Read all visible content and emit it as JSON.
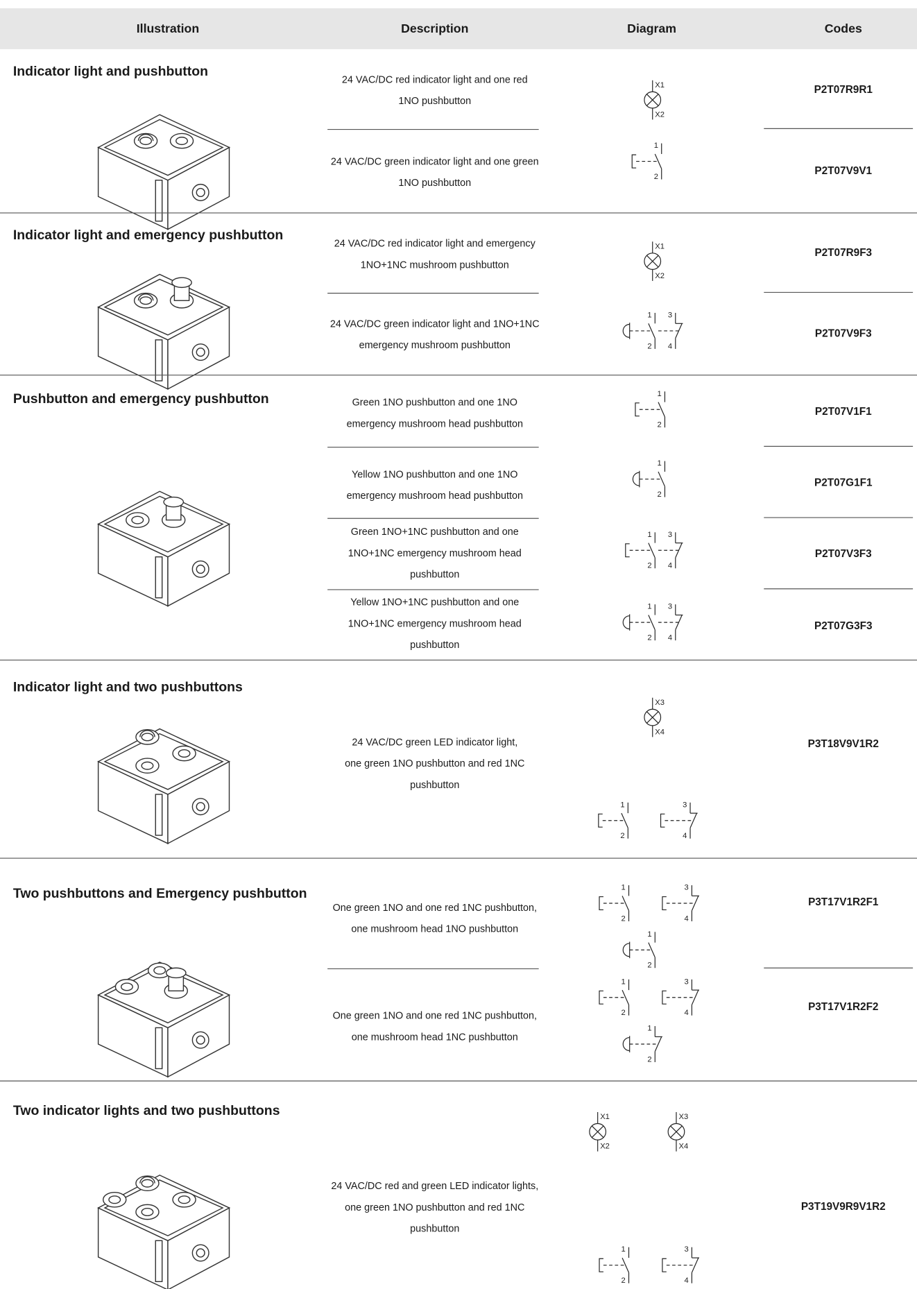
{
  "header": [
    "Illustration",
    "Description",
    "Diagram",
    "Codes"
  ],
  "groups": [
    {
      "title": "Indicator light and pushbutton",
      "items": [
        {
          "description": [
            "24 VAC/DC red indicator light and one red",
            "1NO pushbutton"
          ],
          "code": "P2T07R9R1",
          "diagram": [
            "X1",
            "X2"
          ]
        },
        {
          "description": [
            "24 VAC/DC green indicator light and one green",
            "1NO pushbutton"
          ],
          "code": "P2T07V9V1",
          "diagram": [
            "1",
            "2"
          ]
        }
      ]
    },
    {
      "title": "Indicator light and emergency pushbutton",
      "items": [
        {
          "description": [
            "24 VAC/DC red indicator light and emergency",
            "1NO+1NC mushroom pushbutton"
          ],
          "code": "P2T07R9F3",
          "diagram": [
            "X1",
            "X2"
          ]
        },
        {
          "description": [
            "24 VAC/DC green indicator light and 1NO+1NC",
            "emergency mushroom pushbutton"
          ],
          "code": "P2T07V9F3",
          "diagram": [
            "1",
            "2",
            "3",
            "4"
          ]
        }
      ]
    },
    {
      "title": "Pushbutton and emergency pushbutton",
      "items": [
        {
          "description": [
            "Green 1NO pushbutton and one 1NO",
            "emergency mushroom head pushbutton"
          ],
          "code": "P2T07V1F1",
          "diagram": [
            "1",
            "2"
          ]
        },
        {
          "description": [
            "Yellow 1NO pushbutton and one 1NO",
            "emergency mushroom head pushbutton"
          ],
          "code": "P2T07G1F1",
          "diagram": [
            "1",
            "2"
          ]
        },
        {
          "description": [
            "Green 1NO+1NC pushbutton and one",
            "1NO+1NC emergency mushroom head",
            "pushbutton"
          ],
          "code": "P2T07V3F3",
          "diagram": [
            "1",
            "2",
            "3",
            "4"
          ]
        },
        {
          "description": [
            "Yellow 1NO+1NC pushbutton and one",
            "1NO+1NC emergency mushroom head",
            "pushbutton"
          ],
          "code": "P2T07G3F3",
          "diagram": [
            "1",
            "2",
            "3",
            "4"
          ]
        }
      ]
    },
    {
      "title": "Indicator light and two pushbuttons",
      "items": [
        {
          "description": [
            "24 VAC/DC green LED indicator light,",
            "one green 1NO pushbutton and red 1NC",
            "pushbutton"
          ],
          "code": "P3T18V9V1R2",
          "diagram": [
            "X3",
            "X4",
            "1",
            "2",
            "3",
            "4"
          ]
        }
      ]
    },
    {
      "title": "Two pushbuttons and Emergency pushbutton",
      "items": [
        {
          "description": [
            "One green 1NO and one red 1NC pushbutton,",
            "one mushroom head 1NO pushbutton"
          ],
          "code": "P3T17V1R2F1",
          "diagram": [
            "1",
            "2",
            "3",
            "4",
            "1",
            "2"
          ]
        },
        {
          "description": [
            "One green 1NO and one red 1NC pushbutton,",
            "one mushroom head 1NC pushbutton"
          ],
          "code": "P3T17V1R2F2",
          "diagram": [
            "1",
            "2",
            "3",
            "4",
            "1",
            "2"
          ]
        }
      ]
    },
    {
      "title": "Two indicator lights and two pushbuttons",
      "items": [
        {
          "description": [
            "24 VAC/DC red and green LED indicator lights,",
            "one green 1NO pushbutton and red 1NC",
            "pushbutton"
          ],
          "code": "P3T19V9R9V1R2",
          "diagram": [
            "X1",
            "X2",
            "X3",
            "X4",
            "1",
            "2",
            "3",
            "4"
          ]
        }
      ]
    }
  ]
}
